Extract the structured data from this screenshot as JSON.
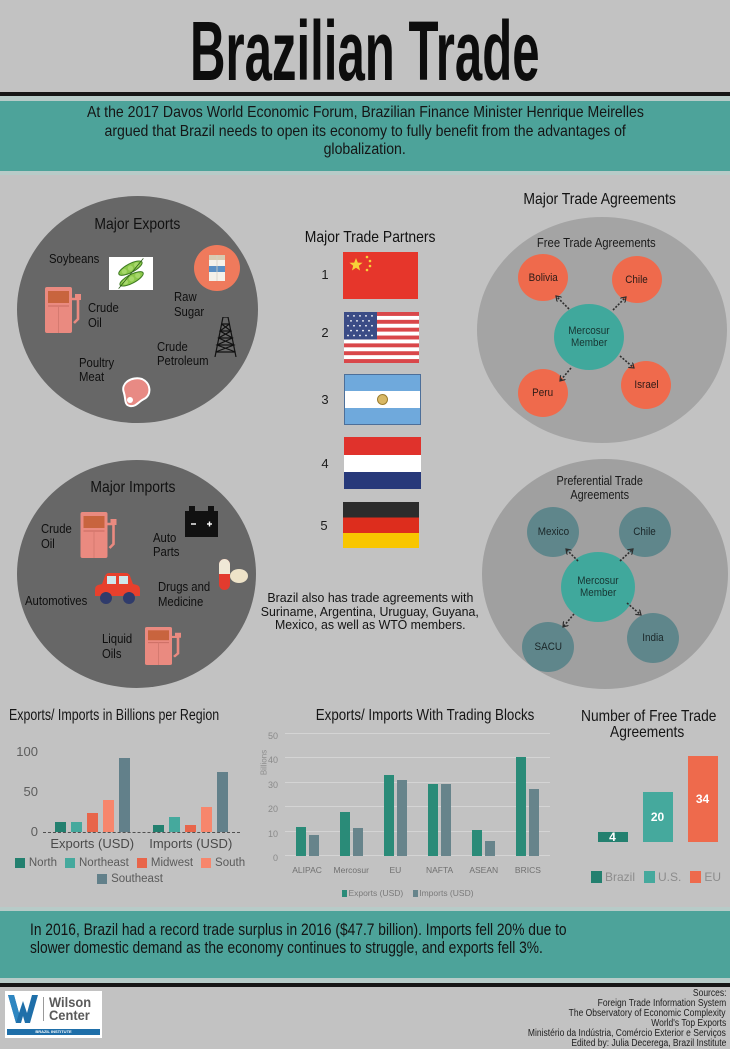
{
  "colors": {
    "bg": "#c2c2c2",
    "teal_band": "#4da39a",
    "dark_circle": "#676767",
    "light_circle": "#a4a4a4",
    "orange": "#ef6a4c",
    "mercosur": "#40a89c",
    "slate": "#5f868b"
  },
  "header": {
    "title": "Brazilian Trade"
  },
  "intro": {
    "lines": [
      "At the 2017 Davos World Economic Forum, Brazilian Finance Minister Henrique Meirelles",
      "argued that Brazil needs to open its economy to fully benefit from the advantages of",
      "globalization."
    ]
  },
  "major_exports": {
    "title": "Major Exports",
    "items": [
      {
        "label": [
          "Soybeans"
        ],
        "icon": "soybean-icon"
      },
      {
        "label": [
          "Raw",
          "Sugar"
        ],
        "icon": "sugar-icon"
      },
      {
        "label": [
          "Crude",
          "Oil"
        ],
        "icon": "gas-pump-icon"
      },
      {
        "label": [
          "Crude",
          "Petroleum"
        ],
        "icon": "oil-derrick-icon"
      },
      {
        "label": [
          "Poultry",
          "Meat"
        ],
        "icon": "meat-icon"
      }
    ]
  },
  "major_imports": {
    "title": "Major Imports",
    "items": [
      {
        "label": [
          "Crude",
          "Oil"
        ],
        "icon": "gas-pump-icon"
      },
      {
        "label": [
          "Auto",
          "Parts"
        ],
        "icon": "car-battery-icon"
      },
      {
        "label": [
          "Drugs and",
          "Medicine"
        ],
        "icon": "pills-icon"
      },
      {
        "label": [
          "Automotives"
        ],
        "icon": "car-icon"
      },
      {
        "label": [
          "Liquid",
          "Oils"
        ],
        "icon": "gas-pump-icon"
      }
    ]
  },
  "trade_partners": {
    "title": "Major Trade Partners",
    "items": [
      {
        "rank": "1",
        "flag": "china-flag"
      },
      {
        "rank": "2",
        "flag": "usa-flag"
      },
      {
        "rank": "3",
        "flag": "argentina-flag"
      },
      {
        "rank": "4",
        "flag": "netherlands-flag"
      },
      {
        "rank": "5",
        "flag": "germany-flag"
      }
    ],
    "note": [
      "Brazil also has trade agreements with",
      "Suriname, Argentina, Uruguay, Guyana,",
      "Mexico, as well as WTO members."
    ]
  },
  "trade_agreements": {
    "title": "Major Trade Agreements",
    "free_trade": {
      "title": "Free Trade Agreements",
      "center": [
        "Mercosur",
        "Member"
      ],
      "partners": [
        "Bolivia",
        "Chile",
        "Peru",
        "Israel"
      ]
    },
    "preferential": {
      "title": [
        "Preferential Trade",
        "Agreements"
      ],
      "center": [
        "Mercosur",
        "Member"
      ],
      "partners": [
        "Mexico",
        "Chile",
        "SACU",
        "India"
      ]
    }
  },
  "summary": {
    "lines": [
      "In 2016, Brazil had a record trade surplus in 2016 ($47.7 billion). Imports fell 20% due to",
      "slower domestic demand as the economy continues to struggle, and exports fell 3%."
    ]
  },
  "footer": {
    "logo": {
      "line1": "Wilson",
      "line2": "Center",
      "sub": "BRAZIL INSTITUTE"
    },
    "sources": [
      "Sources:",
      "Foreign Trade Information System",
      "The Observatory of Economic Complexity",
      "World's Top Exports",
      "Ministério da Indústria, Comércio Exterior e Serviços",
      "Edited by: Julia Decerega, Brazil Institute"
    ]
  },
  "chart_data": [
    {
      "type": "bar",
      "title": "Exports/ Imports in Billions per Region",
      "categories": [
        "Exports (USD)",
        "Imports (USD)"
      ],
      "series": [
        {
          "name": "North",
          "color": "#23806f",
          "values": [
            13,
            9
          ]
        },
        {
          "name": "Northeast",
          "color": "#45a99d",
          "values": [
            13,
            19
          ]
        },
        {
          "name": "Midwest",
          "color": "#e8654a",
          "values": [
            24,
            9
          ]
        },
        {
          "name": "South",
          "color": "#f7866c",
          "values": [
            40,
            31
          ]
        },
        {
          "name": "Southeast",
          "color": "#62808a",
          "values": [
            93,
            75
          ]
        }
      ],
      "xlabel": "",
      "ylabel": "",
      "ylim": [
        0,
        100
      ],
      "yticks": [
        0,
        50,
        100
      ],
      "grid": false,
      "legend_position": "bottom"
    },
    {
      "type": "bar",
      "title": "Exports/ Imports With Trading Blocks",
      "categories": [
        "ALIPAC",
        "Mercosur",
        "EU",
        "NAFTA",
        "ASEAN",
        "BRICS"
      ],
      "series": [
        {
          "name": "Exports (USD)",
          "color": "#2a8b78",
          "values": [
            12,
            18,
            33,
            29.5,
            10.5,
            40.5
          ]
        },
        {
          "name": "Imports (USD)",
          "color": "#67848b",
          "values": [
            8.5,
            11.5,
            31,
            29.5,
            6,
            27.5
          ]
        }
      ],
      "xlabel": "",
      "ylabel": "Billions",
      "ylim": [
        0,
        50
      ],
      "yticks": [
        0,
        10,
        20,
        30,
        40,
        50
      ],
      "grid": true,
      "legend_position": "bottom"
    },
    {
      "type": "bar",
      "title": "Number of Free Trade Agreements",
      "title_lines": [
        "Number of Free Trade",
        "Agreements"
      ],
      "categories": [
        "Brazil",
        "U.S.",
        "EU"
      ],
      "series": [
        {
          "name": "Free Trade Agreements",
          "colors": [
            "#23806f",
            "#45a99d",
            "#ee6a4c"
          ],
          "values": [
            4,
            20,
            34
          ]
        }
      ],
      "xlabel": "",
      "ylabel": "",
      "ylim": [
        0,
        40
      ],
      "show_values": true,
      "grid": false,
      "legend_position": "bottom"
    }
  ]
}
